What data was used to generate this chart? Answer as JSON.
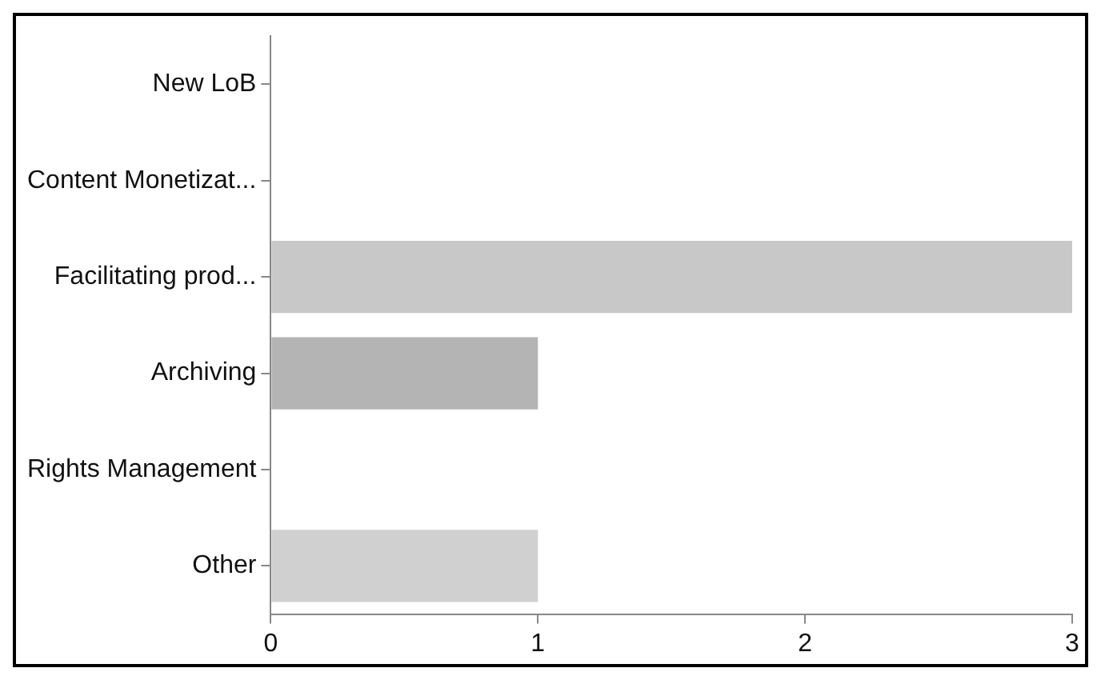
{
  "chart_data": {
    "type": "bar",
    "orientation": "horizontal",
    "categories": [
      "New LoB",
      "Content Monetizat...",
      "Facilitating prod...",
      "Archiving",
      "Rights Management",
      "Other"
    ],
    "values": [
      0,
      0,
      3,
      1,
      0,
      1
    ],
    "colors": [
      "#c8c8c8",
      "#c8c8c8",
      "#c8c8c8",
      "#b4b4b4",
      "#c8c8c8",
      "#d0d0d0"
    ],
    "xlim": [
      0,
      3
    ],
    "xticks": [
      0,
      1,
      2,
      3
    ],
    "grid": false,
    "legend": false
  }
}
